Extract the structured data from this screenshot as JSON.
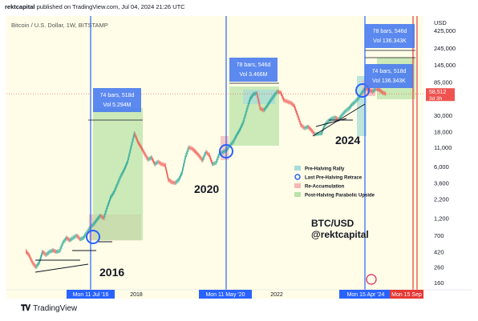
{
  "header": {
    "author": "rektcapital",
    "published_on": "published on TradingView.com, Jul 04, 2024 21:26 UTC"
  },
  "symbol": "Bitcoin / U.S. Dollar, 1W, BITSTAMP",
  "chart_data": {
    "type": "candlestick-line",
    "title": "BTC/USD @rektcapital",
    "y_scale": "log",
    "y_currency": "USD",
    "y_ticks": [
      "425,000",
      "245,000",
      "145,000",
      "85,000",
      "58,512",
      "30,000",
      "18,000",
      "11,000",
      "6,000",
      "3,600",
      "2,200",
      "1,200",
      "700",
      "420",
      "260",
      "160"
    ],
    "y_tick_values": [
      425000,
      245000,
      145000,
      85000,
      58512,
      30000,
      18000,
      11000,
      6000,
      3600,
      2200,
      1200,
      700,
      420,
      260,
      160
    ],
    "x_ticks": [
      "Mon 11 Jul '16",
      "2018",
      "Mon 11 May '20",
      "2022",
      "Mon 15 Apr '24",
      "Mon 15 Sep"
    ],
    "price_label": {
      "value": "58,512",
      "countdown": "3d 3h"
    },
    "halvings": [
      {
        "label": "2016",
        "date": "Mon 11 Jul '16"
      },
      {
        "label": "2020",
        "date": "Mon 11 May '20"
      },
      {
        "label": "2024",
        "date": "Mon 15 Apr '24"
      }
    ],
    "range_boxes": [
      {
        "bars": "74 bars, 518d",
        "vol": "Vol 5.294M"
      },
      {
        "bars": "78 bars, 546d",
        "vol": "Vol 3.466M"
      },
      {
        "bars": "74 bars, 518d",
        "vol": "Vol 136.343K"
      },
      {
        "bars": "78 bars, 546d",
        "vol": "Vol 136.343K"
      }
    ],
    "legend": [
      {
        "label": "Pre-Halving Rally",
        "color": "#a8dbd8"
      },
      {
        "label": "Last Pre-Halving Retrace",
        "color": "#2962ff"
      },
      {
        "label": "Re-Accumulation",
        "color": "#f4b7b3"
      },
      {
        "label": "Post-Halving Parabolic Upside",
        "color": "#b9e3a8"
      }
    ],
    "approx_weekly_close_path": [
      [
        0,
        430
      ],
      [
        4,
        380
      ],
      [
        8,
        300
      ],
      [
        12,
        260
      ],
      [
        16,
        300
      ],
      [
        20,
        420
      ],
      [
        24,
        380
      ],
      [
        28,
        420
      ],
      [
        32,
        440
      ],
      [
        36,
        420
      ],
      [
        40,
        430
      ],
      [
        44,
        560
      ],
      [
        48,
        650
      ],
      [
        52,
        600
      ],
      [
        56,
        650
      ],
      [
        60,
        700
      ],
      [
        64,
        620
      ],
      [
        68,
        650
      ],
      [
        72,
        760
      ],
      [
        76,
        900
      ],
      [
        80,
        1000
      ],
      [
        84,
        1150
      ],
      [
        88,
        1300
      ],
      [
        92,
        1200
      ],
      [
        96,
        1700
      ],
      [
        100,
        2300
      ],
      [
        104,
        2700
      ],
      [
        108,
        3500
      ],
      [
        112,
        4500
      ],
      [
        116,
        5500
      ],
      [
        120,
        7000
      ],
      [
        124,
        11000
      ],
      [
        128,
        17000
      ],
      [
        132,
        13000
      ],
      [
        136,
        11000
      ],
      [
        140,
        9000
      ],
      [
        144,
        7500
      ],
      [
        148,
        8000
      ],
      [
        152,
        6500
      ],
      [
        156,
        7000
      ],
      [
        160,
        6500
      ],
      [
        164,
        6300
      ],
      [
        168,
        4000
      ],
      [
        172,
        3700
      ],
      [
        176,
        3600
      ],
      [
        180,
        4000
      ],
      [
        184,
        5000
      ],
      [
        188,
        8000
      ],
      [
        192,
        11000
      ],
      [
        196,
        10500
      ],
      [
        200,
        9500
      ],
      [
        204,
        8500
      ],
      [
        208,
        7300
      ],
      [
        212,
        9500
      ],
      [
        216,
        8600
      ],
      [
        220,
        6500
      ],
      [
        224,
        6800
      ],
      [
        228,
        9000
      ],
      [
        232,
        9500
      ],
      [
        236,
        10000
      ],
      [
        240,
        11500
      ],
      [
        244,
        13000
      ],
      [
        248,
        16000
      ],
      [
        252,
        19000
      ],
      [
        256,
        24000
      ],
      [
        260,
        35000
      ],
      [
        264,
        50000
      ],
      [
        268,
        58000
      ],
      [
        272,
        60000
      ],
      [
        276,
        37000
      ],
      [
        280,
        35000
      ],
      [
        284,
        40000
      ],
      [
        288,
        47000
      ],
      [
        292,
        55000
      ],
      [
        296,
        63000
      ],
      [
        300,
        61000
      ],
      [
        304,
        48000
      ],
      [
        308,
        46000
      ],
      [
        312,
        44000
      ],
      [
        316,
        40000
      ],
      [
        320,
        30000
      ],
      [
        324,
        22000
      ],
      [
        328,
        20000
      ],
      [
        332,
        21000
      ],
      [
        336,
        19000
      ],
      [
        340,
        16500
      ],
      [
        344,
        16800
      ],
      [
        348,
        17000
      ],
      [
        352,
        22000
      ],
      [
        356,
        25000
      ],
      [
        360,
        27000
      ],
      [
        364,
        28000
      ],
      [
        368,
        26000
      ],
      [
        372,
        30000
      ],
      [
        376,
        34000
      ],
      [
        380,
        37000
      ],
      [
        384,
        42000
      ],
      [
        388,
        46000
      ],
      [
        392,
        52000
      ],
      [
        396,
        62000
      ],
      [
        400,
        70000
      ],
      [
        404,
        66000
      ],
      [
        408,
        63000
      ],
      [
        412,
        68000
      ],
      [
        416,
        66000
      ],
      [
        420,
        61000
      ],
      [
        424,
        58512
      ]
    ]
  }
}
